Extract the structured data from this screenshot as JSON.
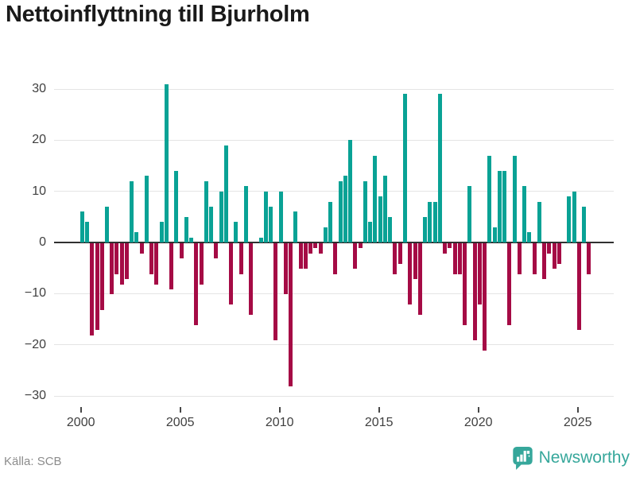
{
  "title": "Nettoinflyttning till Bjurholm",
  "source": "Källa: SCB",
  "logo": {
    "text": "Newsworthy"
  },
  "colors": {
    "positive_bar": "#09a295",
    "negative_bar": "#a50b45",
    "logo_teal": "#36a79b",
    "grid": "#e4e4e4",
    "axis": "#303030",
    "tick_text": "#3f3f3f"
  },
  "chart_data": {
    "type": "bar",
    "title": "Nettoinflyttning till Bjurholm",
    "frequency": "quarterly",
    "x_start": "2000-Q1",
    "x_end": "2025-Q3",
    "ylim": [
      -30,
      31
    ],
    "grid": true,
    "y_ticks": [
      {
        "v": 30,
        "label": "30"
      },
      {
        "v": 20,
        "label": "20"
      },
      {
        "v": 10,
        "label": "10"
      },
      {
        "v": 0,
        "label": "0"
      },
      {
        "v": -10,
        "label": "−10"
      },
      {
        "v": -20,
        "label": "−20"
      },
      {
        "v": -30,
        "label": "−30"
      }
    ],
    "x_ticks": [
      2000,
      2005,
      2010,
      2015,
      2020,
      2025
    ],
    "values": [
      6,
      4,
      -18,
      -17,
      -13,
      7,
      -10,
      -6,
      -8,
      -7,
      12,
      2,
      -2,
      13,
      -6,
      -8,
      4,
      31,
      -9,
      14,
      -3,
      5,
      1,
      -16,
      -8,
      12,
      7,
      -3,
      10,
      19,
      -12,
      4,
      -6,
      11,
      -14,
      0,
      1,
      10,
      7,
      -19,
      10,
      -10,
      -28,
      6,
      -5,
      -5,
      -2,
      -1,
      -2,
      3,
      8,
      -6,
      12,
      13,
      20,
      -5,
      -1,
      12,
      4,
      17,
      9,
      13,
      5,
      -6,
      -4,
      29,
      -12,
      -7,
      -14,
      5,
      8,
      8,
      29,
      -2,
      -1,
      -6,
      -6,
      -16,
      11,
      -19,
      -12,
      -21,
      17,
      3,
      14,
      14,
      -16,
      17,
      -6,
      11,
      2,
      -6,
      8,
      -7,
      -2,
      -5,
      -4,
      0,
      9,
      10,
      -17,
      7,
      -6
    ]
  }
}
